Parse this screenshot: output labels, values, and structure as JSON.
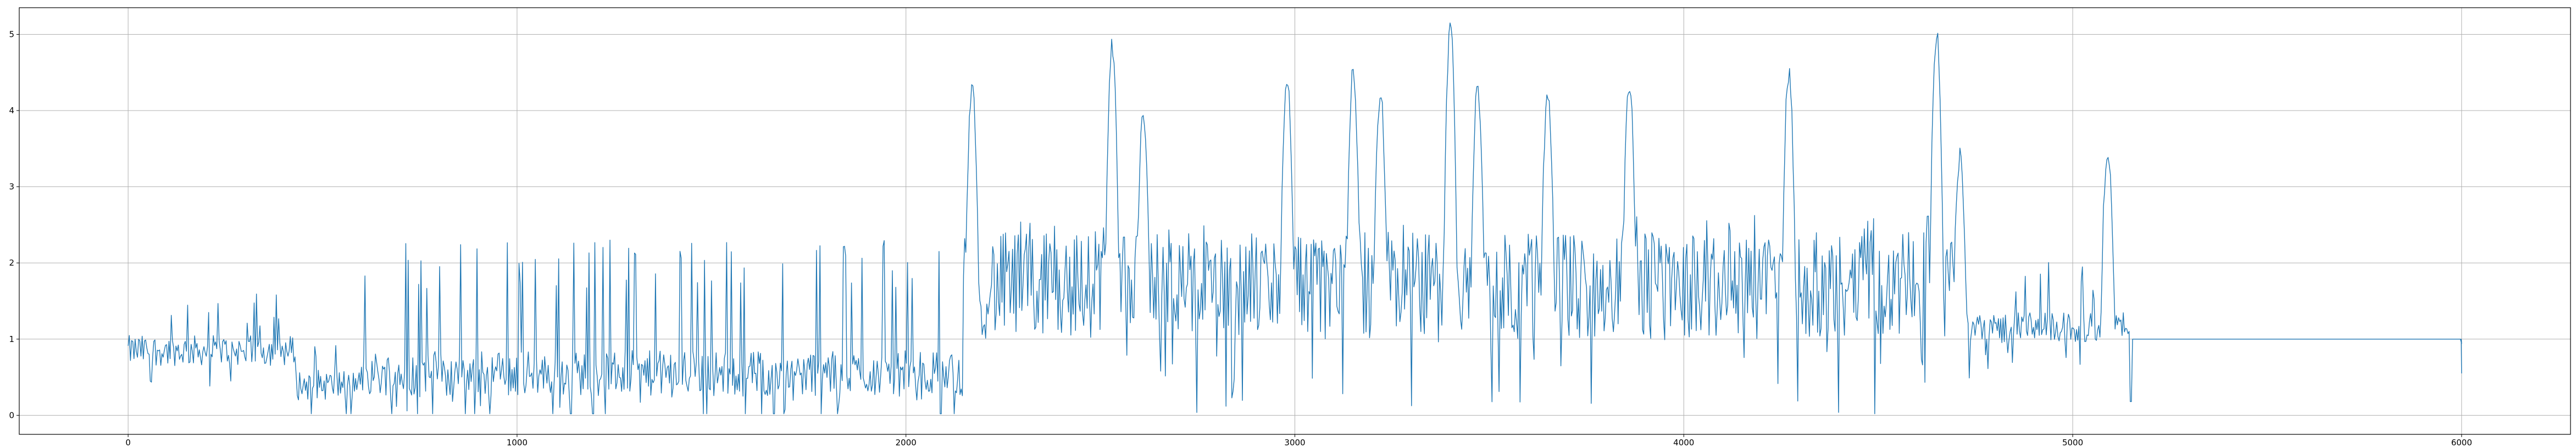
{
  "chart_data": {
    "type": "line",
    "title": "",
    "xlabel": "",
    "ylabel": "",
    "xlim": [
      -280,
      6280
    ],
    "ylim": [
      -0.25,
      5.35
    ],
    "grid": true,
    "legend": "none",
    "x_ticks": [
      0,
      1000,
      2000,
      3000,
      4000,
      5000,
      6000
    ],
    "x_tick_labels": [
      "0",
      "1000",
      "2000",
      "3000",
      "4000",
      "5000",
      "6000"
    ],
    "y_ticks": [
      0,
      1,
      2,
      3,
      4,
      5
    ],
    "y_tick_labels": [
      "0",
      "1",
      "2",
      "3",
      "4",
      "5"
    ],
    "series": [
      {
        "color": "#1f77b4",
        "segments": [
          {
            "x_start": 0,
            "x_end": 430,
            "baseline": 0.85,
            "noise": 0.2,
            "spike_prob": 0.08,
            "spike_height": 1.55
          },
          {
            "x_start": 430,
            "x_end": 600,
            "baseline": 0.4,
            "noise": 0.2,
            "spike_prob": 0.03,
            "spike_height": 0.9
          },
          {
            "x_start": 600,
            "x_end": 2150,
            "baseline": 0.55,
            "noise": 0.3,
            "spike_prob": 0.09,
            "spike_height": 2.2
          },
          {
            "x_start": 2150,
            "x_end": 5150,
            "baseline": 1.7,
            "noise": 0.7,
            "spike_prob": 0.1,
            "spike_height": 2.5
          },
          {
            "x_start": 4720,
            "x_end": 5150,
            "baseline": 1.15,
            "noise": 0.2,
            "spike_prob": 0.07,
            "spike_height": 1.95
          },
          {
            "x_start": 5150,
            "x_end": 6000,
            "baseline": 1.0,
            "noise": 0.0,
            "spike_prob": 0.0,
            "spike_height": 1.0
          }
        ],
        "peaks": [
          {
            "x": 2170,
            "y": 4.3
          },
          {
            "x": 2530,
            "y": 4.85
          },
          {
            "x": 2610,
            "y": 3.9
          },
          {
            "x": 2980,
            "y": 4.4
          },
          {
            "x": 3150,
            "y": 4.5
          },
          {
            "x": 3220,
            "y": 4.2
          },
          {
            "x": 3400,
            "y": 5.1
          },
          {
            "x": 3470,
            "y": 4.3
          },
          {
            "x": 3650,
            "y": 4.2
          },
          {
            "x": 3860,
            "y": 4.35
          },
          {
            "x": 4270,
            "y": 4.5
          },
          {
            "x": 4650,
            "y": 5.0
          },
          {
            "x": 4710,
            "y": 3.4
          },
          {
            "x": 5090,
            "y": 3.5
          }
        ],
        "final_point": {
          "x": 6000,
          "y": 0.55
        },
        "minima": [
          {
            "x": 5150,
            "y": 0.18
          }
        ]
      }
    ]
  }
}
